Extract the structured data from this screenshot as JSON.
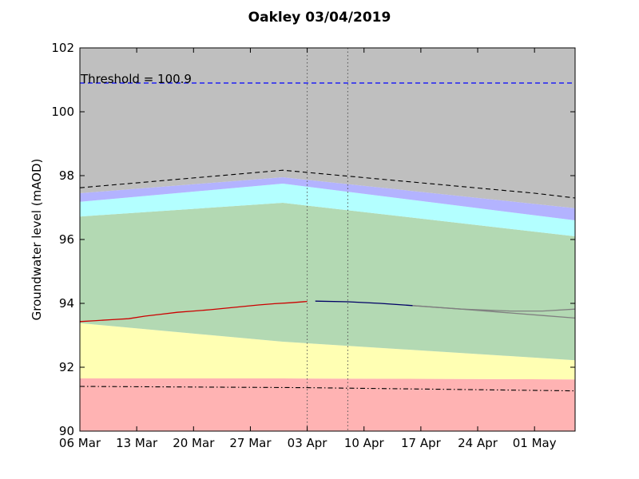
{
  "chart_data": {
    "type": "area",
    "title": "Oakley 03/04/2019",
    "xlabel": "",
    "ylabel": "Groundwater level (mAOD)",
    "ylim": [
      90,
      102
    ],
    "xlim": [
      "2019-03-06",
      "2019-05-06"
    ],
    "x_ticks": [
      {
        "date": "2019-03-06",
        "label": "06 Mar"
      },
      {
        "date": "2019-03-13",
        "label": "13 Mar"
      },
      {
        "date": "2019-03-20",
        "label": "20 Mar"
      },
      {
        "date": "2019-03-27",
        "label": "27 Mar"
      },
      {
        "date": "2019-04-03",
        "label": "03 Apr"
      },
      {
        "date": "2019-04-10",
        "label": "10 Apr"
      },
      {
        "date": "2019-04-17",
        "label": "17 Apr"
      },
      {
        "date": "2019-04-24",
        "label": "24 Apr"
      },
      {
        "date": "2019-05-01",
        "label": "01 May"
      }
    ],
    "y_ticks": [
      90,
      92,
      94,
      96,
      98,
      100,
      102
    ],
    "threshold": {
      "value": 100.9,
      "label": "Threshold = 100.9",
      "color": "#0000ff"
    },
    "vlines": [
      "2019-04-03",
      "2019-04-08"
    ],
    "band_dates": [
      "2019-03-06",
      "2019-03-31",
      "2019-05-06"
    ],
    "bands": [
      {
        "name": "",
        "color": "#ffb3b3",
        "lower": [
          90,
          90,
          90
        ],
        "upper": [
          91.65,
          91.65,
          91.62
        ]
      },
      {
        "name": "",
        "color": "#ffffb3",
        "lower": [
          91.65,
          91.65,
          91.62
        ],
        "upper": [
          93.38,
          92.8,
          92.22
        ]
      },
      {
        "name": "",
        "color": "#b3d9b3",
        "lower": [
          93.38,
          92.8,
          92.22
        ],
        "upper": [
          96.72,
          97.15,
          96.1
        ]
      },
      {
        "name": "",
        "color": "#b3ffff",
        "lower": [
          96.72,
          97.15,
          96.1
        ],
        "upper": [
          97.18,
          97.75,
          96.6
        ]
      },
      {
        "name": "",
        "color": "#b3b3ff",
        "lower": [
          97.18,
          97.75,
          96.6
        ],
        "upper": [
          97.45,
          97.95,
          96.98
        ]
      },
      {
        "name": "",
        "color": "#bfbfbf",
        "lower": [
          97.45,
          97.95,
          96.98
        ],
        "upper": [
          102,
          102,
          102
        ]
      }
    ],
    "series": [
      {
        "name": "",
        "color": "#cc0000",
        "style": "solid",
        "x": [
          "2019-03-06",
          "2019-03-08",
          "2019-03-10",
          "2019-03-12",
          "2019-03-14",
          "2019-03-16",
          "2019-03-18",
          "2019-03-20",
          "2019-03-22",
          "2019-03-24",
          "2019-03-26",
          "2019-03-28",
          "2019-03-30",
          "2019-04-01",
          "2019-04-03"
        ],
        "y": [
          93.43,
          93.46,
          93.49,
          93.52,
          93.6,
          93.66,
          93.72,
          93.76,
          93.8,
          93.85,
          93.9,
          93.95,
          93.99,
          94.02,
          94.06
        ]
      },
      {
        "name": "",
        "color": "#000066",
        "style": "solid",
        "x": [
          "2019-04-04",
          "2019-04-08",
          "2019-04-12",
          "2019-04-16"
        ],
        "y": [
          94.07,
          94.05,
          94.0,
          93.93
        ]
      },
      {
        "name": "",
        "color": "#808080",
        "style": "solid",
        "x": [
          "2019-04-16",
          "2019-04-22",
          "2019-04-28",
          "2019-05-02",
          "2019-05-06"
        ],
        "y": [
          93.93,
          93.82,
          93.76,
          93.76,
          93.82
        ]
      },
      {
        "name": "",
        "color": "#808080",
        "style": "solid",
        "x": [
          "2019-04-16",
          "2019-04-22",
          "2019-04-28",
          "2019-05-02",
          "2019-05-06"
        ],
        "y": [
          93.93,
          93.82,
          93.7,
          93.62,
          93.54
        ]
      },
      {
        "name": "",
        "color": "#000000",
        "style": "dashed",
        "x": [
          "2019-03-06",
          "2019-03-31",
          "2019-05-01",
          "2019-05-06"
        ],
        "y": [
          97.62,
          98.17,
          97.45,
          97.3
        ]
      },
      {
        "name": "",
        "color": "#000000",
        "style": "dashdot",
        "x": [
          "2019-03-06",
          "2019-04-03",
          "2019-05-06"
        ],
        "y": [
          91.4,
          91.36,
          91.26
        ]
      }
    ]
  }
}
